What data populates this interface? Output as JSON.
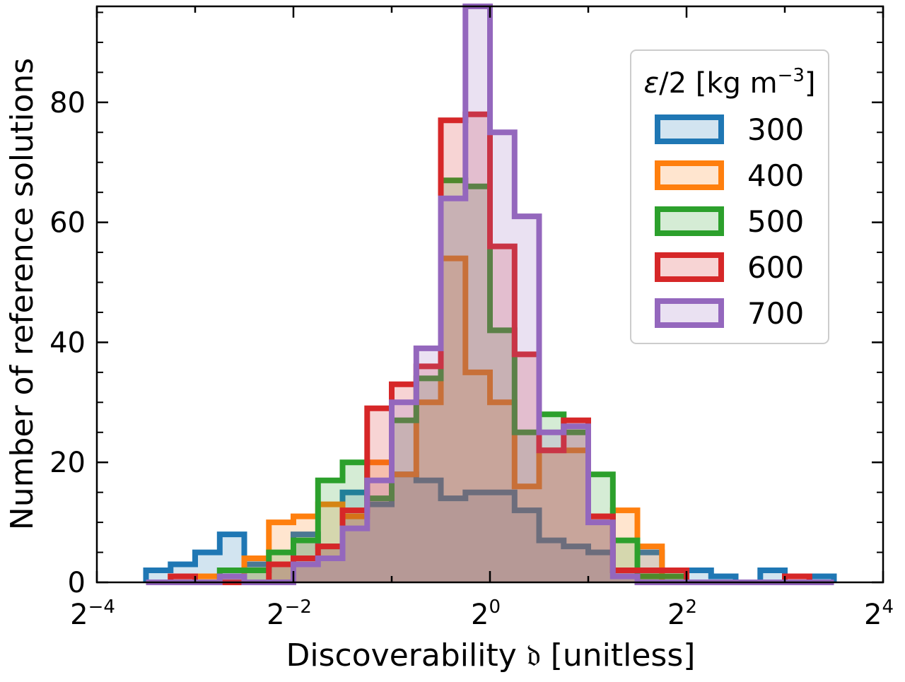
{
  "chart_data": {
    "type": "histogram",
    "x_scale": "log2",
    "xlim": [
      0.0625,
      16
    ],
    "ylim": [
      0,
      96
    ],
    "xlabel": "Discoverability 𝔡 [unitless]",
    "ylabel": "Number of reference solutions",
    "x_ticks": [
      {
        "base": "2",
        "exp": "−4",
        "value": 0.0625
      },
      {
        "base": "2",
        "exp": "−2",
        "value": 0.25
      },
      {
        "base": "2",
        "exp": "0",
        "value": 1
      },
      {
        "base": "2",
        "exp": "2",
        "value": 4
      },
      {
        "base": "2",
        "exp": "4",
        "value": 16
      }
    ],
    "y_ticks": [
      0,
      20,
      40,
      60,
      80
    ],
    "y_minor_step": 5,
    "legend": {
      "title": "ε/2 [kg m",
      "title_exp": "−3",
      "title_close": "]",
      "position": "upper right"
    },
    "bin_edges_log2": [
      -3.5,
      -3.25,
      -3.0,
      -2.75,
      -2.5,
      -2.25,
      -2.0,
      -1.75,
      -1.5,
      -1.25,
      -1.0,
      -0.75,
      -0.5,
      -0.25,
      0.0,
      0.25,
      0.5,
      0.75,
      1.0,
      1.25,
      1.5,
      1.75,
      2.0,
      2.25,
      2.5,
      2.75,
      3.0,
      3.25,
      3.5
    ],
    "series": [
      {
        "name": "300",
        "color": "#1f77b4",
        "values": [
          2,
          3,
          5,
          8,
          3,
          3,
          8,
          6,
          15,
          13,
          18,
          17,
          14,
          15,
          15,
          12,
          7,
          6,
          5,
          2,
          5,
          0,
          2,
          1,
          0,
          2,
          0,
          1
        ]
      },
      {
        "name": "400",
        "color": "#ff7f0e",
        "values": [
          0,
          1,
          1,
          1,
          4,
          10,
          11,
          13,
          11,
          20,
          18,
          30,
          54,
          35,
          30,
          16,
          22,
          22,
          11,
          12,
          6,
          0,
          0,
          0,
          0,
          0,
          0,
          0
        ]
      },
      {
        "name": "500",
        "color": "#2ca02c",
        "values": [
          0,
          0,
          0,
          2,
          2,
          5,
          7,
          17,
          20,
          14,
          27,
          34,
          67,
          66,
          42,
          25,
          28,
          25,
          18,
          7,
          1,
          1,
          0,
          0,
          0,
          0,
          0,
          0
        ]
      },
      {
        "name": "600",
        "color": "#d62728",
        "values": [
          0,
          1,
          0,
          0,
          0,
          3,
          4,
          6,
          12,
          29,
          33,
          36,
          77,
          78,
          56,
          38,
          22,
          27,
          11,
          2,
          2,
          2,
          0,
          0,
          0,
          0,
          1,
          0
        ]
      },
      {
        "name": "700",
        "color": "#9467bd",
        "values": [
          0,
          0,
          0,
          1,
          0,
          0,
          3,
          4,
          9,
          17,
          30,
          39,
          64,
          96,
          75,
          61,
          25,
          26,
          10,
          1,
          0,
          0,
          0,
          0,
          0,
          0,
          0,
          0
        ]
      }
    ]
  }
}
